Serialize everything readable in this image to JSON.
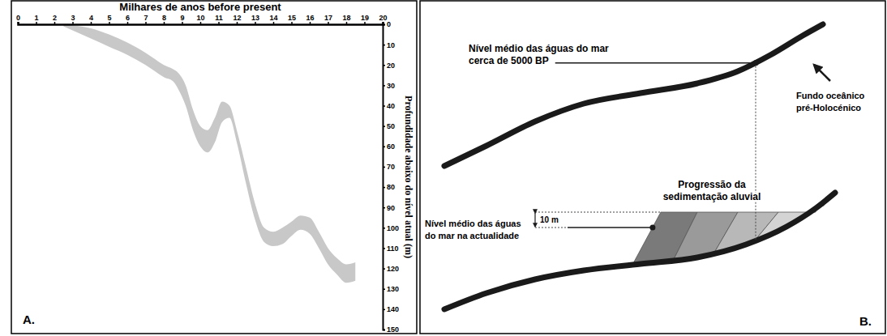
{
  "chart_data": {
    "type": "area",
    "x_label": "Milhares de anos before present",
    "y_label": "Profundidade abaixo do nível atual (m)",
    "panel_label": "A.",
    "color": "#c8c8c8",
    "x": [
      2.5,
      3,
      4,
      5,
      6,
      7,
      7.5,
      8,
      8.5,
      8.8,
      9.2,
      9.6,
      10,
      10.4,
      10.8,
      11.2,
      11.6,
      12,
      12.5,
      13,
      13.5,
      14,
      14.5,
      15,
      15.5,
      16,
      16.5,
      17,
      17.5,
      18,
      18.5
    ],
    "series": [
      {
        "values": [
          0,
          0.5,
          2,
          5,
          9,
          14,
          17,
          20,
          22,
          24,
          30,
          42,
          50,
          52,
          46,
          38,
          40,
          52,
          70,
          88,
          100,
          102,
          100,
          97,
          94,
          95,
          102,
          110,
          115,
          118,
          117
        ]
      },
      {
        "values": [
          1,
          3,
          7,
          11,
          15,
          20,
          23,
          26,
          28,
          32,
          40,
          52,
          60,
          63,
          58,
          48,
          46,
          58,
          78,
          96,
          107,
          109,
          108,
          104,
          101,
          103,
          110,
          118,
          123,
          127,
          126
        ]
      }
    ],
    "xlim": [
      0,
      20
    ],
    "xticks": [
      0,
      1,
      2,
      3,
      4,
      5,
      6,
      7,
      8,
      9,
      10,
      11,
      12,
      13,
      14,
      15,
      16,
      17,
      18,
      19,
      20
    ],
    "ylim": [
      0,
      150
    ],
    "yticks": [
      0,
      10,
      20,
      30,
      40,
      50,
      60,
      70,
      80,
      90,
      100,
      110,
      120,
      130,
      140,
      150
    ]
  },
  "diagram": {
    "panel_label": "B.",
    "past_sea_level": {
      "lines": [
        "Nível médio das águas do mar",
        "cerca de 5000 BP"
      ]
    },
    "seafloor": {
      "lines": [
        "Fundo oceânico",
        "pré-Holocénico"
      ]
    },
    "sedimentation": {
      "lines": [
        "Progressão da",
        "sedimentação aluvial"
      ]
    },
    "height": {
      "label": "10 m"
    },
    "present_sea_level": {
      "lines": [
        "Nível médio das águas",
        "do mar na actualidade"
      ]
    }
  }
}
